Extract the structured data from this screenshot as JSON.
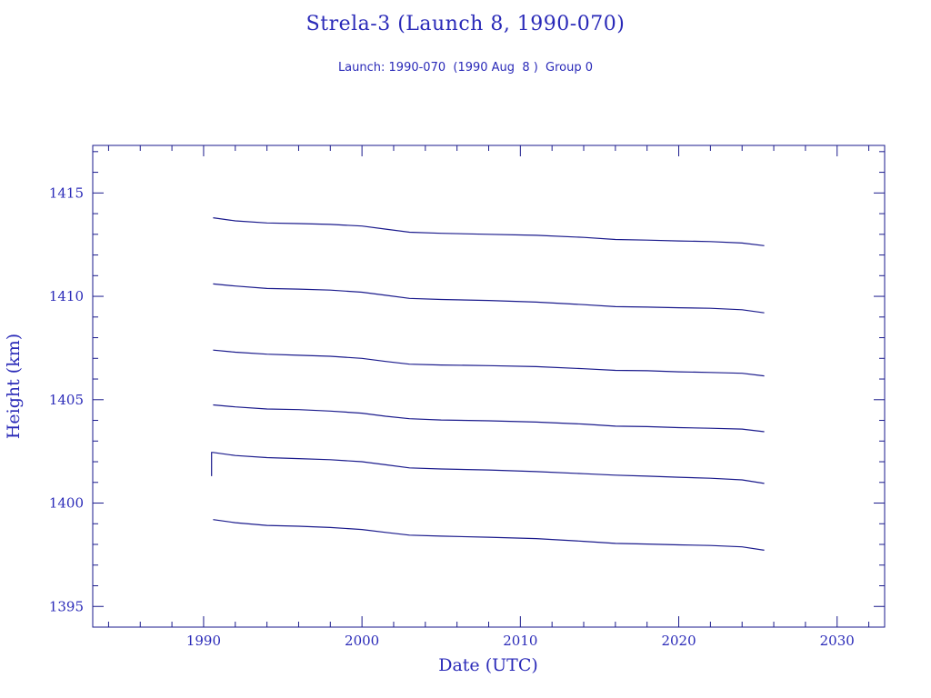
{
  "chart_data": {
    "type": "line",
    "title": "Strela-3 (Launch 8, 1990-070)",
    "subtitle": "Launch: 1990-070  (1990 Aug  8 )  Group 0",
    "xlabel": "Date (UTC)",
    "ylabel": "Height (km)",
    "xlim": [
      1983,
      2033
    ],
    "ylim": [
      1394,
      1417.3
    ],
    "xticks": [
      1990,
      2000,
      2010,
      2020,
      2030
    ],
    "yticks": [
      1395,
      1400,
      1405,
      1410,
      1415
    ],
    "series": [
      {
        "x": [
          1990.6,
          1992,
          1994,
          1996,
          1998,
          2000,
          2001.5,
          2003,
          2005,
          2008,
          2011,
          2014,
          2016,
          2018,
          2020,
          2022,
          2024,
          2025.4
        ],
        "y": [
          1413.8,
          1413.65,
          1413.55,
          1413.52,
          1413.48,
          1413.4,
          1413.25,
          1413.1,
          1413.05,
          1413.0,
          1412.95,
          1412.85,
          1412.75,
          1412.72,
          1412.68,
          1412.65,
          1412.58,
          1412.45
        ]
      },
      {
        "x": [
          1990.6,
          1992,
          1994,
          1996,
          1998,
          2000,
          2001.5,
          2003,
          2005,
          2008,
          2011,
          2014,
          2016,
          2018,
          2020,
          2022,
          2024,
          2025.4
        ],
        "y": [
          1410.6,
          1410.5,
          1410.38,
          1410.35,
          1410.3,
          1410.2,
          1410.05,
          1409.9,
          1409.85,
          1409.8,
          1409.72,
          1409.6,
          1409.5,
          1409.48,
          1409.45,
          1409.42,
          1409.35,
          1409.2
        ]
      },
      {
        "x": [
          1990.6,
          1992,
          1994,
          1996,
          1998,
          2000,
          2001.5,
          2003,
          2005,
          2008,
          2011,
          2014,
          2016,
          2018,
          2020,
          2022,
          2024,
          2025.4
        ],
        "y": [
          1407.4,
          1407.3,
          1407.2,
          1407.15,
          1407.1,
          1407.0,
          1406.85,
          1406.72,
          1406.68,
          1406.65,
          1406.6,
          1406.5,
          1406.42,
          1406.4,
          1406.35,
          1406.32,
          1406.28,
          1406.15
        ]
      },
      {
        "x": [
          1990.6,
          1992,
          1994,
          1996,
          1998,
          2000,
          2001.5,
          2003,
          2005,
          2008,
          2011,
          2014,
          2016,
          2018,
          2020,
          2022,
          2024,
          2025.4
        ],
        "y": [
          1404.75,
          1404.65,
          1404.55,
          1404.52,
          1404.45,
          1404.35,
          1404.2,
          1404.08,
          1404.02,
          1403.98,
          1403.92,
          1403.82,
          1403.72,
          1403.7,
          1403.65,
          1403.62,
          1403.58,
          1403.45
        ]
      },
      {
        "x": [
          1990.5,
          1990.5,
          1990.6,
          1992,
          1994,
          1996,
          1998,
          2000,
          2001.5,
          2003,
          2005,
          2008,
          2011,
          2014,
          2016,
          2018,
          2020,
          2022,
          2024,
          2025.4
        ],
        "y": [
          1401.3,
          1402.45,
          1402.45,
          1402.3,
          1402.2,
          1402.15,
          1402.1,
          1402.0,
          1401.85,
          1401.7,
          1401.65,
          1401.6,
          1401.52,
          1401.42,
          1401.35,
          1401.3,
          1401.25,
          1401.2,
          1401.12,
          1400.95
        ]
      },
      {
        "x": [
          1990.6,
          1992,
          1994,
          1996,
          1998,
          2000,
          2001.5,
          2003,
          2005,
          2008,
          2011,
          2014,
          2016,
          2018,
          2020,
          2022,
          2024,
          2025.4
        ],
        "y": [
          1399.2,
          1399.05,
          1398.92,
          1398.88,
          1398.82,
          1398.72,
          1398.58,
          1398.45,
          1398.4,
          1398.35,
          1398.28,
          1398.15,
          1398.05,
          1398.02,
          1397.98,
          1397.95,
          1397.88,
          1397.72
        ]
      }
    ]
  }
}
